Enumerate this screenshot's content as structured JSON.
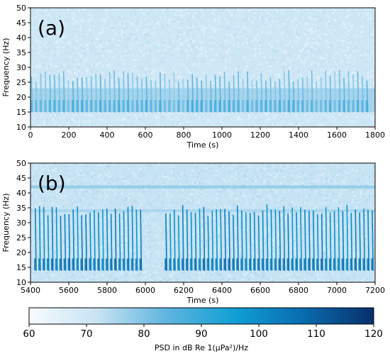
{
  "chart_data": [
    {
      "type": "heatmap",
      "panel_label": "(a)",
      "xlabel": "Time (s)",
      "ylabel": "Frequency (Hz)",
      "xlim": [
        0,
        1800
      ],
      "ylim": [
        10,
        50
      ],
      "xticks": [
        0,
        200,
        400,
        600,
        800,
        1000,
        1200,
        1400,
        1600,
        1800
      ],
      "yticks": [
        10,
        15,
        20,
        25,
        30,
        35,
        40,
        45,
        50
      ],
      "xtick_labels": [
        "0",
        "200",
        "400",
        "600",
        "800",
        "1000",
        "1200",
        "1400",
        "1600",
        "1800"
      ],
      "ytick_labels": [
        "10",
        "15",
        "20",
        "25",
        "30",
        "35",
        "40",
        "45",
        "50"
      ],
      "calls": {
        "start_s": 5,
        "interval_s": 24,
        "count": 74,
        "freq_low_hz": 15,
        "freq_high_hz": 29,
        "level_db": 85
      },
      "bands": [
        {
          "freq_low_hz": 15,
          "freq_high_hz": 23,
          "level_db": 80
        }
      ],
      "background_db": 70
    },
    {
      "type": "heatmap",
      "panel_label": "(b)",
      "xlabel": "Time (s)",
      "ylabel": "Frequency (Hz)",
      "xlim": [
        5400,
        7200
      ],
      "ylim": [
        10,
        50
      ],
      "xticks": [
        5400,
        5600,
        5800,
        6000,
        6200,
        6400,
        6600,
        6800,
        7000,
        7200
      ],
      "yticks": [
        10,
        15,
        20,
        25,
        30,
        35,
        40,
        45,
        50
      ],
      "xtick_labels": [
        "5400",
        "5600",
        "5800",
        "6000",
        "6200",
        "6400",
        "6600",
        "6800",
        "7000",
        "7200"
      ],
      "ytick_labels": [
        "10",
        "15",
        "20",
        "25",
        "30",
        "35",
        "40",
        "45",
        "50"
      ],
      "calls": {
        "start_s": 5425,
        "interval_s": 22,
        "count": 81,
        "freq_low_hz": 14,
        "freq_high_hz": 36,
        "level_db": 105,
        "gap_s": [
          5990,
          6100
        ]
      },
      "bands": [
        {
          "freq_low_hz": 41.5,
          "freq_high_hz": 42.5,
          "level_db": 82
        },
        {
          "freq_low_hz": 33.5,
          "freq_high_hz": 34.5,
          "level_db": 78
        }
      ],
      "background_db": 72
    }
  ],
  "colorbar": {
    "min": 60,
    "max": 120,
    "ticks": [
      60,
      70,
      80,
      90,
      100,
      110,
      120
    ],
    "tick_labels": [
      "60",
      "70",
      "80",
      "90",
      "100",
      "110",
      "120"
    ],
    "label": "PSD in dB Re 1(µPa²)/Hz",
    "colors": [
      "#f7fbff",
      "#c6e3f3",
      "#5fb4de",
      "#0f9fd4",
      "#0a6aae",
      "#08306b"
    ]
  }
}
